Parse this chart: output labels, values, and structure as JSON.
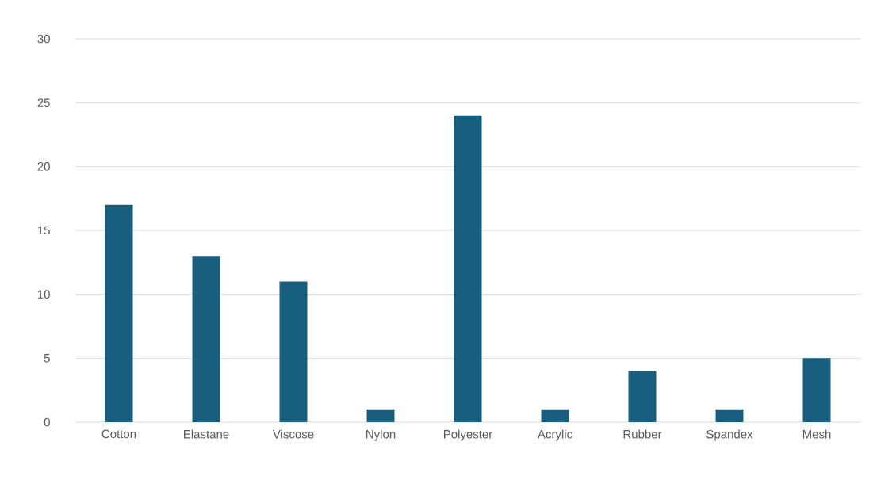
{
  "chart_data": {
    "type": "bar",
    "categories": [
      "Cotton",
      "Elastane",
      "Viscose",
      "Nylon",
      "Polyester",
      "Acrylic",
      "Rubber",
      "Spandex",
      "Mesh"
    ],
    "values": [
      17,
      13,
      11,
      1,
      24,
      1,
      4,
      1,
      5
    ],
    "color": "#175e7f",
    "ylim": [
      0,
      30
    ],
    "yticks": [
      0,
      5,
      10,
      15,
      20,
      25,
      30
    ],
    "grid": "y"
  }
}
